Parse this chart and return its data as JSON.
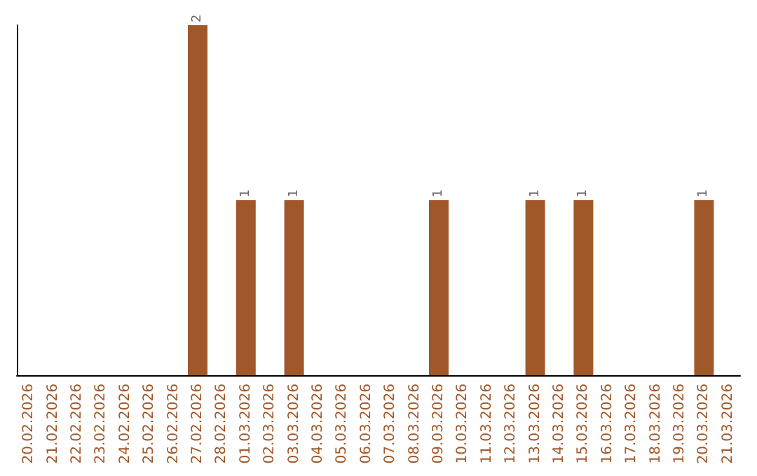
{
  "chart_data": {
    "type": "bar",
    "categories": [
      "20.02.2026",
      "21.02.2026",
      "22.02.2026",
      "23.02.2026",
      "24.02.2026",
      "25.02.2026",
      "26.02.2026",
      "27.02.2026",
      "28.02.2026",
      "01.03.2026",
      "02.03.2026",
      "03.03.2026",
      "04.03.2026",
      "05.03.2026",
      "06.03.2026",
      "07.03.2026",
      "08.03.2026",
      "09.03.2026",
      "10.03.2026",
      "11.03.2026",
      "12.03.2026",
      "13.03.2026",
      "14.03.2026",
      "15.03.2026",
      "16.03.2026",
      "17.03.2026",
      "18.03.2026",
      "19.03.2026",
      "20.03.2026",
      "21.03.2026"
    ],
    "values": [
      0,
      0,
      0,
      0,
      0,
      0,
      0,
      2,
      0,
      1,
      0,
      1,
      0,
      0,
      0,
      0,
      0,
      1,
      0,
      0,
      0,
      1,
      0,
      1,
      0,
      0,
      0,
      0,
      1,
      0
    ],
    "value_labels": [
      null,
      null,
      null,
      null,
      null,
      null,
      null,
      "2",
      null,
      "1",
      null,
      "1",
      null,
      null,
      null,
      null,
      null,
      "1",
      null,
      null,
      null,
      "1",
      null,
      "1",
      null,
      null,
      null,
      null,
      "1",
      null
    ],
    "color": "#a0582a",
    "tick_labels": "x"
  }
}
